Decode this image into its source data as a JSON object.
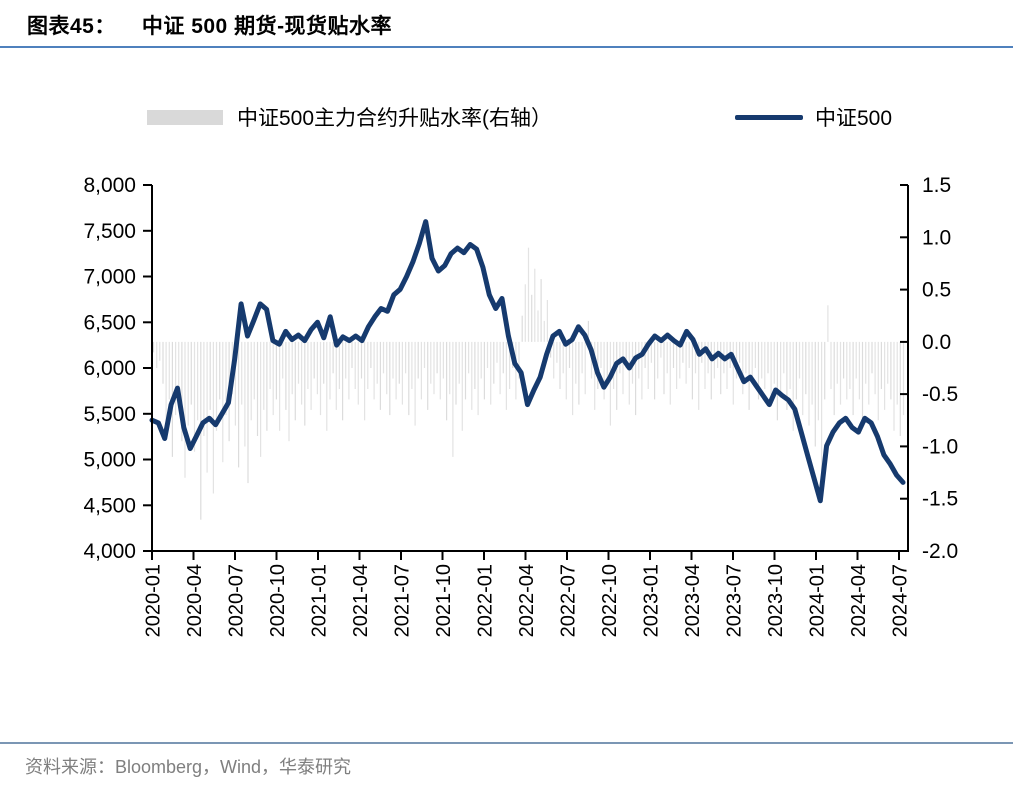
{
  "figure": {
    "label": "图表45：",
    "title": "中证 500 期货-现货贴水率"
  },
  "colors": {
    "line": "#163a6e",
    "bar": "#dcdcdc",
    "bar_legend": "#d9d9d9",
    "title_rule": "#4f81bd",
    "footer_rule": "#7b96b4",
    "footer_text": "#7f7f7f",
    "axis": "#000000"
  },
  "legend": {
    "bar_series_label": "中证500主力合约升贴水率(右轴）",
    "line_series_label": "中证500"
  },
  "footer": {
    "source": "资料来源：Bloomberg，Wind，华泰研究"
  },
  "chart_data": {
    "type": "line+bar",
    "title": "中证 500 期货-现货贴水率",
    "grid": false,
    "legend_position": "top",
    "x_ticks": [
      "2020-01",
      "2020-04",
      "2020-07",
      "2020-10",
      "2021-01",
      "2021-04",
      "2021-07",
      "2021-10",
      "2022-01",
      "2022-04",
      "2022-07",
      "2022-10",
      "2023-01",
      "2023-04",
      "2023-07",
      "2023-10",
      "2024-01",
      "2024-04",
      "2024-07"
    ],
    "left_axis": {
      "min": 4000,
      "max": 8000,
      "tick_values": [
        8000,
        7500,
        7000,
        6500,
        6000,
        5500,
        5000,
        4500,
        4000
      ],
      "tick_labels": [
        "8,000",
        "7,500",
        "7,000",
        "6,500",
        "6,000",
        "5,500",
        "5,000",
        "4,500",
        "4,000"
      ]
    },
    "right_axis": {
      "min": -2.0,
      "max": 1.5,
      "tick_values": [
        1.5,
        1.0,
        0.5,
        0.0,
        -0.5,
        -1.0,
        -1.5,
        -2.0
      ],
      "tick_labels": [
        "1.5",
        "1.0",
        "0.5",
        "0.0",
        "-0.5",
        "-1.0",
        "-1.5",
        "-2.0"
      ]
    },
    "series": [
      {
        "name": "中证500",
        "type": "line",
        "axis": "left",
        "color": "#163a6e",
        "sampling": "biweekly 2020-01 to 2024-07",
        "values": [
          5430,
          5400,
          5230,
          5600,
          5780,
          5350,
          5120,
          5260,
          5400,
          5450,
          5380,
          5500,
          5620,
          6100,
          6700,
          6350,
          6520,
          6700,
          6640,
          6300,
          6260,
          6400,
          6310,
          6360,
          6300,
          6420,
          6500,
          6330,
          6560,
          6250,
          6340,
          6300,
          6350,
          6300,
          6450,
          6560,
          6650,
          6620,
          6800,
          6860,
          7000,
          7160,
          7360,
          7600,
          7200,
          7060,
          7120,
          7250,
          7310,
          7260,
          7350,
          7300,
          7100,
          6800,
          6650,
          6760,
          6350,
          6050,
          5950,
          5600,
          5760,
          5900,
          6150,
          6350,
          6400,
          6260,
          6310,
          6450,
          6360,
          6200,
          5950,
          5790,
          5900,
          6050,
          6100,
          6000,
          6110,
          6150,
          6260,
          6350,
          6300,
          6360,
          6300,
          6250,
          6400,
          6310,
          6150,
          6210,
          6100,
          6160,
          6100,
          6150,
          6000,
          5850,
          5900,
          5800,
          5700,
          5600,
          5760,
          5700,
          5650,
          5550,
          5300,
          5050,
          4800,
          4550,
          5150,
          5300,
          5400,
          5450,
          5350,
          5300,
          5450,
          5400,
          5250,
          5050,
          4950,
          4830,
          4750
        ]
      },
      {
        "name": "中证500主力合约升贴水率(右轴）",
        "type": "bar",
        "axis": "right",
        "color": "#dcdcdc",
        "sampling": "weekly 2020-01 to 2024-07",
        "values": [
          -0.1,
          -0.25,
          -0.18,
          -0.4,
          -0.85,
          -0.55,
          -1.1,
          -0.7,
          -0.45,
          -0.95,
          -1.3,
          -0.8,
          -0.6,
          -1.05,
          -0.75,
          -1.7,
          -0.9,
          -1.25,
          -0.65,
          -1.45,
          -0.85,
          -0.55,
          -1.15,
          -0.7,
          -0.95,
          -0.5,
          -0.8,
          -1.2,
          -0.6,
          -1.0,
          -1.35,
          -0.75,
          -0.55,
          -0.9,
          -1.1,
          -0.65,
          -0.85,
          -0.45,
          -0.7,
          -0.55,
          -0.85,
          -0.35,
          -0.65,
          -0.95,
          -0.5,
          -0.75,
          -0.4,
          -0.6,
          -0.8,
          -0.45,
          -0.65,
          -0.35,
          -0.5,
          -0.7,
          -0.4,
          -0.85,
          -0.55,
          -0.3,
          -0.65,
          -0.45,
          -0.75,
          -0.35,
          -0.55,
          -0.25,
          -0.45,
          -0.6,
          -0.35,
          -0.75,
          -0.45,
          -0.25,
          -0.55,
          -0.4,
          -0.65,
          -0.3,
          -0.5,
          -0.7,
          -0.35,
          -0.55,
          -0.4,
          -0.6,
          -0.3,
          -0.7,
          -0.45,
          -0.8,
          -0.35,
          -0.55,
          -0.25,
          -0.65,
          -0.4,
          -0.5,
          -0.3,
          -0.55,
          -0.35,
          -0.75,
          -0.5,
          -1.1,
          -0.6,
          -0.4,
          -0.85,
          -0.55,
          -0.3,
          -0.65,
          -0.45,
          -0.7,
          -0.35,
          -0.55,
          -0.25,
          -0.6,
          -0.4,
          -0.2,
          -0.5,
          -0.3,
          -0.65,
          -0.45,
          -0.25,
          -0.55,
          -0.35,
          0.25,
          0.55,
          0.9,
          0.45,
          0.7,
          0.3,
          0.6,
          0.2,
          0.4,
          -0.15,
          -0.35,
          -0.2,
          -0.45,
          -0.3,
          -0.55,
          -0.25,
          -0.7,
          -0.4,
          -0.6,
          -0.3,
          -0.5,
          0.2,
          -0.35,
          -0.65,
          -0.45,
          -0.25,
          -0.55,
          -0.35,
          -0.8,
          -0.45,
          -0.65,
          -0.3,
          -0.5,
          -0.25,
          -0.6,
          -0.4,
          -0.7,
          -0.35,
          -0.55,
          -0.25,
          -0.45,
          -0.2,
          -0.55,
          -0.35,
          -0.15,
          -0.5,
          -0.3,
          -0.6,
          -0.25,
          -0.45,
          -0.35,
          -0.2,
          -0.4,
          -0.25,
          -0.55,
          -0.3,
          -0.65,
          -0.2,
          -0.45,
          -0.3,
          -0.55,
          -0.35,
          -0.25,
          -0.5,
          -0.3,
          -0.45,
          -0.25,
          -0.6,
          -0.35,
          -0.2,
          -0.5,
          -0.3,
          -0.65,
          -0.4,
          -0.25,
          -0.55,
          -0.35,
          -0.45,
          -0.3,
          -0.6,
          -0.4,
          -0.75,
          -0.5,
          -0.3,
          -0.65,
          -0.45,
          -0.85,
          -0.55,
          -0.35,
          -0.7,
          -0.5,
          -0.8,
          -0.6,
          -1.0,
          -0.75,
          -1.35,
          -0.55,
          0.35,
          -0.45,
          -0.7,
          -0.4,
          -0.6,
          -0.35,
          -0.55,
          -0.45,
          -0.7,
          -0.35,
          -0.55,
          -0.8,
          -0.4,
          -0.6,
          -0.3,
          -0.5,
          -0.75,
          -0.45,
          -0.65,
          -0.4,
          -0.55,
          -0.85,
          -0.6,
          -0.9,
          -0.7
        ]
      }
    ]
  }
}
